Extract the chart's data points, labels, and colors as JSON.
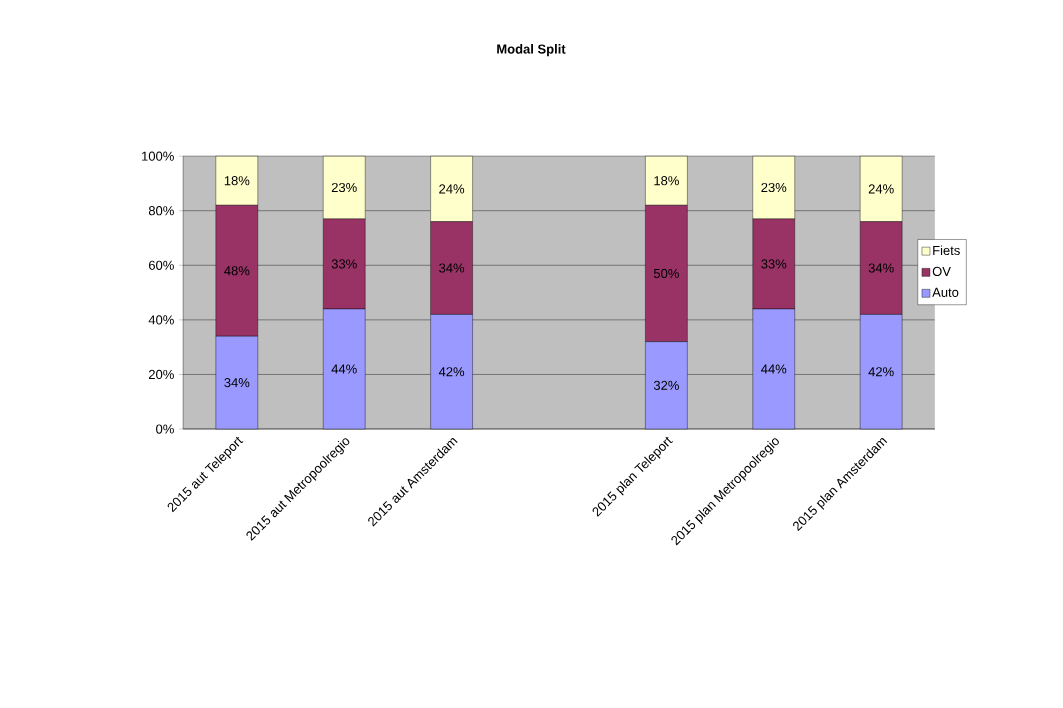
{
  "chart_data": {
    "type": "bar",
    "title": "Modal Split",
    "stacked": true,
    "categories": [
      "2015 aut Teleport",
      "2015 aut Metropoolregio",
      "2015 aut Amsterdam",
      null,
      "2015 plan Teleport",
      "2015 plan Metropoolregio",
      "2015 plan Amsterdam"
    ],
    "series": [
      {
        "name": "Auto",
        "color": "#9999ff",
        "values": [
          34,
          44,
          42,
          null,
          32,
          44,
          42
        ],
        "value_labels": [
          "34%",
          "44%",
          "42%",
          null,
          "32%",
          "44%",
          "42%"
        ]
      },
      {
        "name": "OV",
        "color": "#993366",
        "values": [
          48,
          33,
          34,
          null,
          50,
          33,
          34
        ],
        "value_labels": [
          "48%",
          "33%",
          "34%",
          null,
          "50%",
          "33%",
          "34%"
        ]
      },
      {
        "name": "Fiets",
        "color": "#ffffcc",
        "values": [
          18,
          23,
          24,
          null,
          18,
          23,
          24
        ],
        "value_labels": [
          "18%",
          "23%",
          "24%",
          null,
          "18%",
          "23%",
          "24%"
        ]
      }
    ],
    "ylim": [
      0,
      100
    ],
    "yticks": [
      {
        "value": 0,
        "label": "0%"
      },
      {
        "value": 20,
        "label": "20%"
      },
      {
        "value": 40,
        "label": "40%"
      },
      {
        "value": 60,
        "label": "60%"
      },
      {
        "value": 80,
        "label": "80%"
      },
      {
        "value": 100,
        "label": "100%"
      }
    ],
    "grid": "y",
    "legend": "right"
  }
}
